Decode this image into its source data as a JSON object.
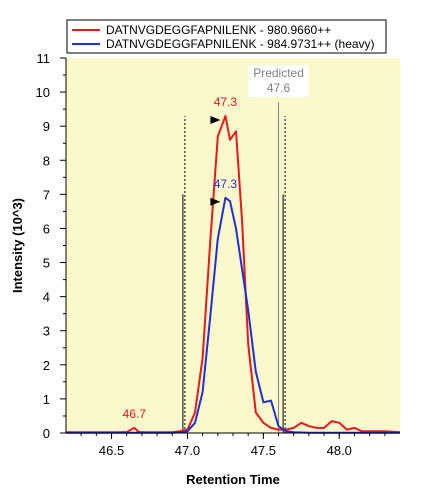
{
  "chart_data": {
    "type": "line",
    "xlabel": "Retention Time",
    "ylabel": "Intensity (10^3)",
    "xlim": [
      46.2,
      48.4
    ],
    "ylim": [
      0,
      11
    ],
    "x_ticks": [
      "46.5",
      "47.0",
      "47.5",
      "48.0"
    ],
    "x_tick_values": [
      46.5,
      47.0,
      47.5,
      48.0
    ],
    "y_ticks": [
      "0",
      "1",
      "2",
      "3",
      "4",
      "5",
      "6",
      "7",
      "8",
      "9",
      "10",
      "11"
    ],
    "y_tick_values": [
      0,
      1,
      2,
      3,
      4,
      5,
      6,
      7,
      8,
      9,
      10,
      11
    ],
    "background_color": "#fbf8cc",
    "legend_position": "top",
    "series": [
      {
        "name": "DATNVGDEGGFAPNILENK - 980.9660++",
        "color": "#e31a1c",
        "x": [
          46.2,
          46.25,
          46.3,
          46.35,
          46.4,
          46.45,
          46.5,
          46.55,
          46.6,
          46.65,
          46.68,
          46.72,
          46.75,
          46.8,
          46.85,
          46.9,
          46.95,
          47.0,
          47.05,
          47.1,
          47.15,
          47.2,
          47.25,
          47.28,
          47.32,
          47.36,
          47.4,
          47.45,
          47.5,
          47.55,
          47.6,
          47.65,
          47.7,
          47.75,
          47.8,
          47.85,
          47.9,
          47.95,
          48.0,
          48.05,
          48.1,
          48.15,
          48.2,
          48.3,
          48.4
        ],
        "y": [
          0.02,
          0.02,
          0.02,
          0.02,
          0.02,
          0.02,
          0.02,
          0.02,
          0.03,
          0.15,
          0.03,
          0.02,
          0.02,
          0.02,
          0.02,
          0.02,
          0.05,
          0.1,
          0.6,
          2.2,
          5.6,
          8.7,
          9.3,
          8.6,
          8.85,
          6.2,
          2.6,
          0.6,
          0.3,
          0.15,
          0.1,
          0.1,
          0.15,
          0.3,
          0.2,
          0.15,
          0.15,
          0.35,
          0.3,
          0.1,
          0.15,
          0.05,
          0.05,
          0.05,
          0.02
        ]
      },
      {
        "name": "DATNVGDEGGFAPNILENK - 984.9731++ (heavy)",
        "color": "#1f2fd6",
        "x": [
          46.2,
          46.3,
          46.4,
          46.5,
          46.6,
          46.7,
          46.8,
          46.9,
          46.95,
          47.0,
          47.05,
          47.1,
          47.15,
          47.2,
          47.25,
          47.28,
          47.32,
          47.36,
          47.4,
          47.45,
          47.5,
          47.55,
          47.6,
          47.65,
          47.7,
          47.8,
          47.9,
          48.0,
          48.1,
          48.2,
          48.3,
          48.4
        ],
        "y": [
          0.01,
          0.01,
          0.01,
          0.01,
          0.01,
          0.01,
          0.01,
          0.01,
          0.02,
          0.05,
          0.3,
          1.2,
          3.4,
          5.7,
          6.9,
          6.8,
          6.0,
          4.8,
          3.6,
          1.8,
          0.9,
          0.95,
          0.2,
          0.05,
          0.02,
          0.01,
          0.01,
          0.01,
          0.01,
          0.01,
          0.01,
          0.01
        ]
      }
    ],
    "annotations": [
      {
        "label": "47.3",
        "x": 47.25,
        "y": 9.3,
        "color": "#e31a1c",
        "series": 0,
        "marker": true
      },
      {
        "label": "47.3",
        "x": 47.25,
        "y": 6.9,
        "color": "#1f2fd6",
        "series": 1,
        "marker": true
      },
      {
        "label": "46.7",
        "x": 46.65,
        "y": 0.15,
        "color": "#e31a1c",
        "series": 0,
        "marker": false
      }
    ],
    "integration_boundaries": [
      {
        "x": 46.97,
        "y_top": 9.3
      },
      {
        "x": 47.63,
        "y_top": 9.3
      }
    ],
    "inner_boundaries": [
      {
        "x": 46.97,
        "y_top": 7.0
      },
      {
        "x": 47.63,
        "y_top": 7.0
      }
    ],
    "predicted": {
      "line1": "Predicted",
      "line2": "47.6",
      "x": 47.6
    }
  }
}
